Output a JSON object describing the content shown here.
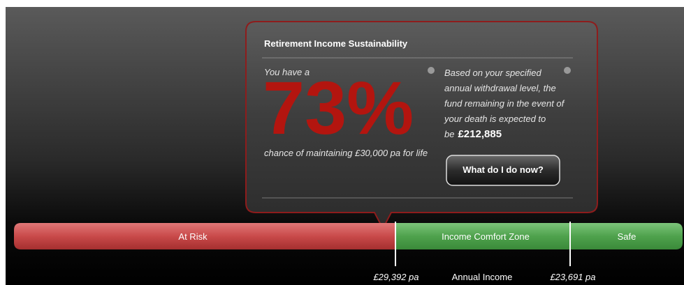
{
  "panel": {
    "title": "Retirement Income Sustainability",
    "left": {
      "prefix": "You have a",
      "percent": "73%",
      "suffix": "chance of maintaining £30,000 pa for life"
    },
    "right": {
      "text": "Based on your specified annual withdrawal level, the fund remaining in the event of your death is expected to be",
      "amount": "£212,885"
    },
    "button": "What do I do now?"
  },
  "bar": {
    "zones": [
      "At Risk",
      "Income Comfort Zone",
      "Safe"
    ],
    "markers": [
      "£29,392 pa",
      "£23,691 pa"
    ],
    "axis_label": "Annual Income"
  }
}
